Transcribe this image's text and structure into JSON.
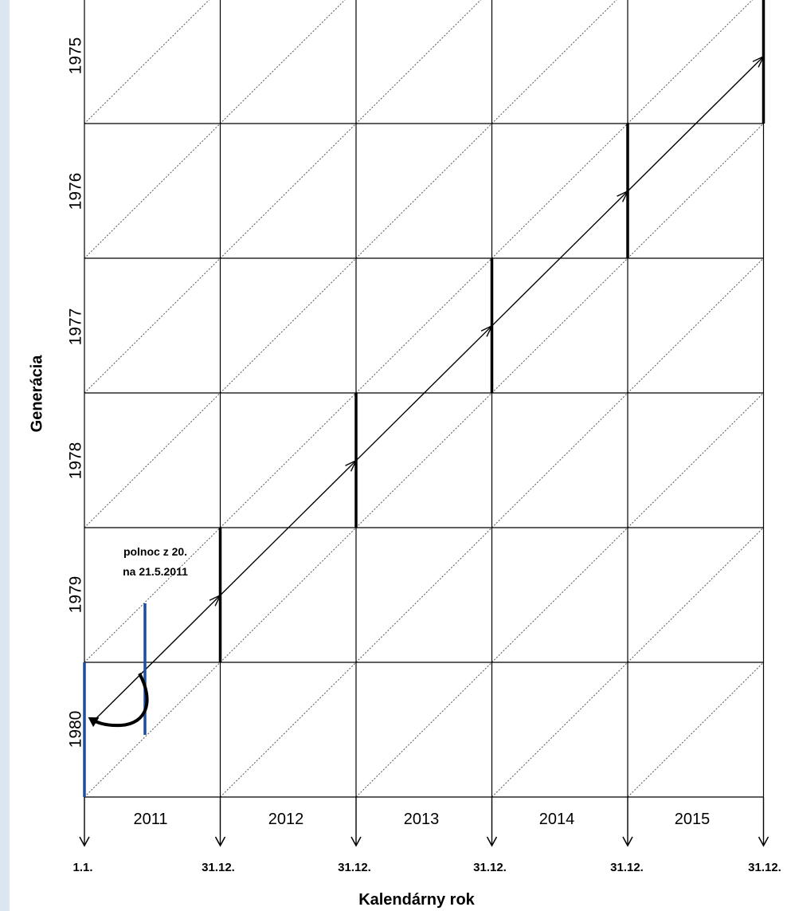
{
  "diagram": {
    "type": "lexis-diagram",
    "axis_x_title": "Kalendárny rok",
    "axis_y_title": "Generácia",
    "years": [
      "2011",
      "2012",
      "2013",
      "2014",
      "2015"
    ],
    "generations": [
      "1975",
      "1976",
      "1977",
      "1978",
      "1979",
      "1980"
    ],
    "date_labels": [
      "1.1.",
      "31.12.",
      "31.12.",
      "31.12.",
      "31.12.",
      "31.12."
    ],
    "annotation": {
      "line1": "polnoc z 20.",
      "line2": "na 21.5.2011"
    },
    "colors": {
      "grid": "#000000",
      "highlight": "#1f4e9e",
      "background": "#ffffff",
      "page": "#dce6f2"
    }
  }
}
